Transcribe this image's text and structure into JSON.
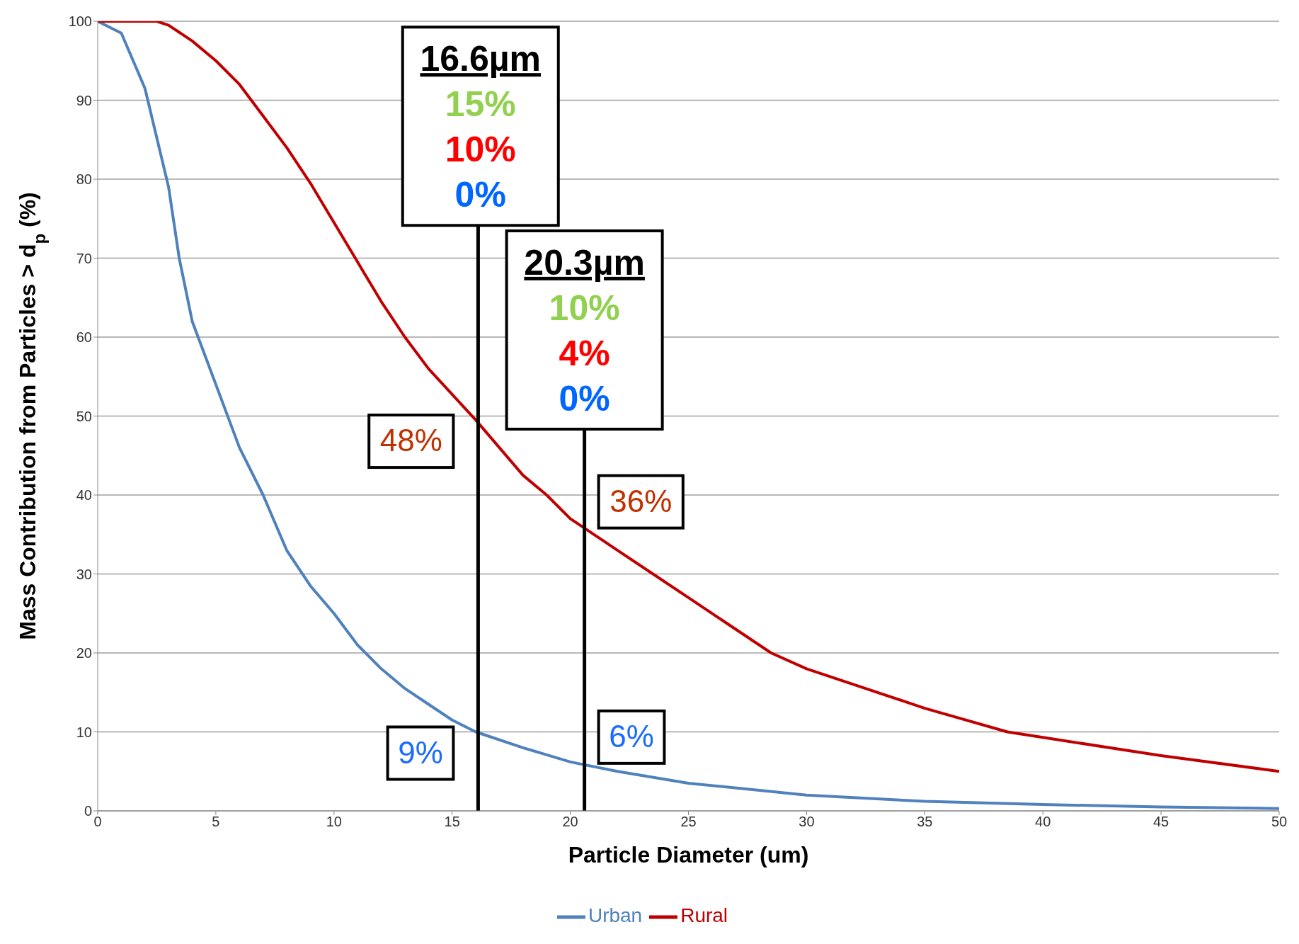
{
  "chart_data": {
    "type": "line",
    "xlabel": "Particle Diameter (um)",
    "ylabel": "Mass Contribution from Particles > d$_{p}$ (%)",
    "xlim": [
      0,
      50
    ],
    "xticks": [
      0,
      5,
      10,
      15,
      20,
      25,
      30,
      35,
      40,
      45,
      50
    ],
    "ylim": [
      0,
      100
    ],
    "yticks": [
      0,
      10,
      20,
      30,
      40,
      50,
      60,
      70,
      80,
      90,
      100
    ],
    "grid": "y",
    "legend": "bottom",
    "marker": "none",
    "line_style": "solid",
    "series": [
      {
        "name": "Urban",
        "color": "#4f81bd",
        "x": [
          0,
          1,
          2,
          3,
          3.45,
          4,
          5,
          6,
          7,
          8,
          9,
          10,
          11,
          12,
          13,
          14,
          15,
          16,
          18,
          20,
          22,
          25,
          30,
          35,
          40,
          45,
          50
        ],
        "values": [
          100,
          98.5,
          91.5,
          79,
          70,
          62,
          54,
          46,
          40,
          33,
          28.5,
          25,
          21,
          18,
          15.5,
          13.5,
          11.5,
          10,
          8,
          6.2,
          5,
          3.5,
          2,
          1.2,
          0.8,
          0.5,
          0.3
        ]
      },
      {
        "name": "Rural",
        "color": "#c00000",
        "x": [
          0,
          1,
          2,
          2.5,
          3,
          4,
          5,
          6,
          7,
          8,
          9,
          10,
          11,
          12,
          13,
          14,
          16,
          18,
          19,
          20,
          22,
          23.5,
          25,
          28.5,
          30,
          35,
          38.5,
          40,
          45,
          50
        ],
        "values": [
          100,
          100,
          100,
          100,
          99.5,
          97.5,
          95,
          92,
          88,
          84,
          79.5,
          74.5,
          69.5,
          64.5,
          60,
          56,
          49.5,
          42.5,
          40,
          37,
          33,
          30,
          27,
          20,
          18,
          13,
          10,
          9.3,
          7,
          5
        ]
      }
    ],
    "ref_lines": [
      {
        "axis": "x",
        "value": 16.1,
        "color": "#000000"
      },
      {
        "axis": "x",
        "value": 20.6,
        "color": "#000000"
      }
    ],
    "annotations": [
      {
        "text": "16.6µm\n15%\n10%\n0%",
        "x": 16.2,
        "y": 86.7
      },
      {
        "text": "20.3µm\n10%\n4%\n0%",
        "x": 20.6,
        "y": 60.9
      },
      {
        "text": "48%",
        "x": 16.1,
        "y": 49.5
      },
      {
        "text": "36%",
        "x": 20.6,
        "y": 36
      },
      {
        "text": "9%",
        "x": 16.1,
        "y": 10
      },
      {
        "text": "6%",
        "x": 20.6,
        "y": 6.2
      }
    ]
  }
}
